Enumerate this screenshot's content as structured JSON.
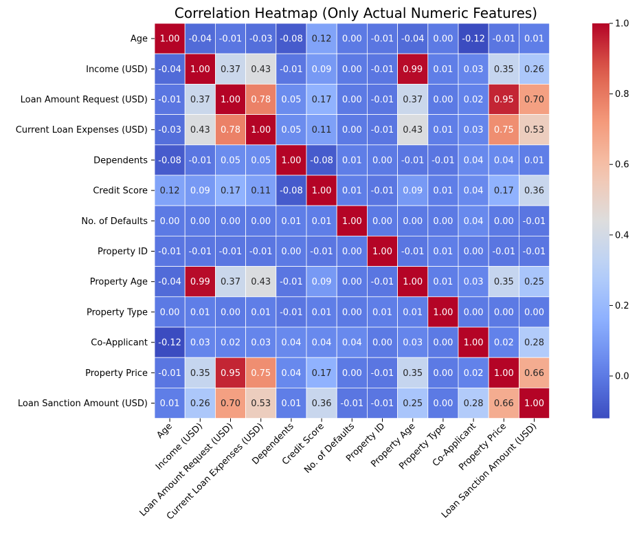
{
  "chart_data": {
    "type": "heatmap",
    "title": "Correlation Heatmap (Only Actual Numeric Features)",
    "xlabel": "",
    "ylabel": "",
    "labels": [
      "Age",
      "Income (USD)",
      "Loan Amount Request (USD)",
      "Current Loan Expenses (USD)",
      "Dependents",
      "Credit Score",
      "No. of Defaults",
      "Property ID",
      "Property Age",
      "Property Type",
      "Co-Applicant",
      "Property Price",
      "Loan Sanction Amount (USD)"
    ],
    "values": [
      [
        1.0,
        -0.04,
        -0.01,
        -0.03,
        -0.08,
        0.12,
        0.0,
        -0.01,
        -0.04,
        0.0,
        -0.12,
        -0.01,
        0.01
      ],
      [
        -0.04,
        1.0,
        0.37,
        0.43,
        -0.01,
        0.09,
        0.0,
        -0.01,
        0.99,
        0.01,
        0.03,
        0.35,
        0.26
      ],
      [
        -0.01,
        0.37,
        1.0,
        0.78,
        0.05,
        0.17,
        -0.0,
        -0.01,
        0.37,
        0.0,
        0.02,
        0.95,
        0.7
      ],
      [
        -0.03,
        0.43,
        0.78,
        1.0,
        0.05,
        0.11,
        -0.0,
        -0.01,
        0.43,
        0.01,
        0.03,
        0.75,
        0.53
      ],
      [
        -0.08,
        -0.01,
        0.05,
        0.05,
        1.0,
        -0.08,
        0.01,
        0.0,
        -0.01,
        -0.01,
        0.04,
        0.04,
        0.01
      ],
      [
        0.12,
        0.09,
        0.17,
        0.11,
        -0.08,
        1.0,
        0.01,
        -0.01,
        0.09,
        0.01,
        0.04,
        0.17,
        0.36
      ],
      [
        0.0,
        0.0,
        -0.0,
        -0.0,
        0.01,
        0.01,
        1.0,
        -0.0,
        0.0,
        0.0,
        0.04,
        0.0,
        -0.01
      ],
      [
        -0.01,
        -0.01,
        -0.01,
        -0.01,
        0.0,
        -0.01,
        -0.0,
        1.0,
        -0.01,
        0.01,
        0.0,
        -0.01,
        -0.01
      ],
      [
        -0.04,
        0.99,
        0.37,
        0.43,
        -0.01,
        0.09,
        0.0,
        -0.01,
        1.0,
        0.01,
        0.03,
        0.35,
        0.25
      ],
      [
        0.0,
        0.01,
        0.0,
        0.01,
        -0.01,
        0.01,
        0.0,
        0.01,
        0.01,
        1.0,
        -0.0,
        0.0,
        0.0
      ],
      [
        -0.12,
        0.03,
        0.02,
        0.03,
        0.04,
        0.04,
        0.04,
        0.0,
        0.03,
        -0.0,
        1.0,
        0.02,
        0.28
      ],
      [
        -0.01,
        0.35,
        0.95,
        0.75,
        0.04,
        0.17,
        0.0,
        -0.01,
        0.35,
        0.0,
        0.02,
        1.0,
        0.66
      ],
      [
        0.01,
        0.26,
        0.7,
        0.53,
        0.01,
        0.36,
        -0.01,
        -0.01,
        0.25,
        0.0,
        0.28,
        0.66,
        1.0
      ]
    ],
    "colormap": "coolwarm",
    "value_range": [
      -0.12,
      1.0
    ],
    "colorbar_ticks": [
      "0.0",
      "0.2",
      "0.4",
      "0.6",
      "0.8",
      "1.0"
    ],
    "colorbar_tick_values": [
      0.0,
      0.2,
      0.4,
      0.6,
      0.8,
      1.0
    ],
    "annotations": "cell values shown with 2 decimals",
    "grid": false,
    "legend": "colorbar-right"
  }
}
